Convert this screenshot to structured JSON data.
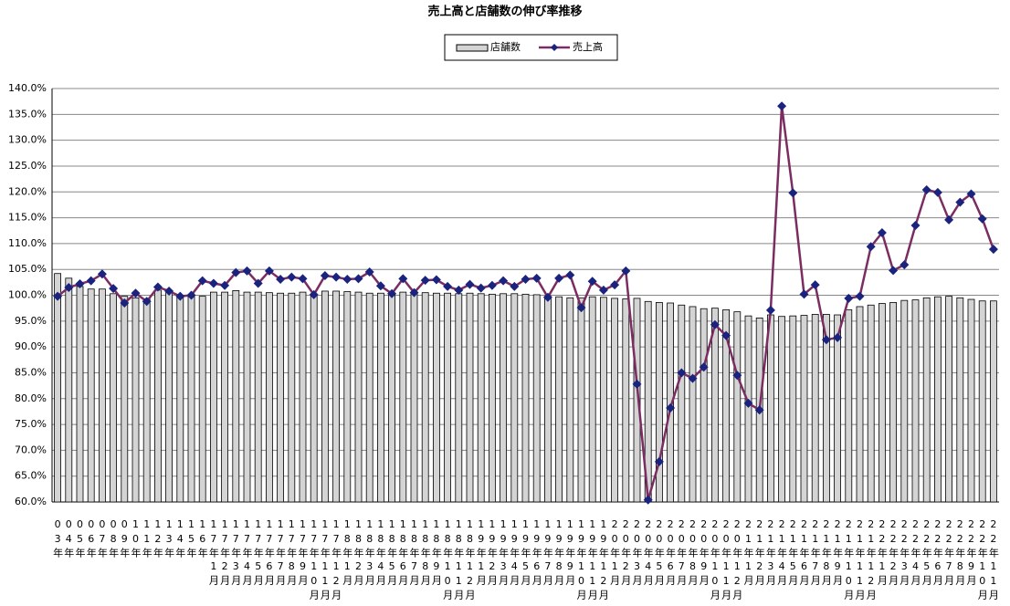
{
  "chart_data": {
    "type": "bar_line",
    "title": "売上高と店舗数の伸び率推移",
    "categories": [
      "03年",
      "04年",
      "05年",
      "06年",
      "07年",
      "08年",
      "09年",
      "10年",
      "11年",
      "12年",
      "13年",
      "14年",
      "15年",
      "16年",
      "17年1月",
      "17年2月",
      "17年3月",
      "17年4月",
      "17年5月",
      "17年6月",
      "17年7月",
      "17年8月",
      "17年9月",
      "17年10月",
      "17年11月",
      "17年12月",
      "18年1月",
      "18年2月",
      "18年3月",
      "18年4月",
      "18年5月",
      "18年6月",
      "18年7月",
      "18年8月",
      "18年9月",
      "18年10月",
      "18年11月",
      "18年12月",
      "19年1月",
      "19年2月",
      "19年3月",
      "19年4月",
      "19年5月",
      "19年6月",
      "19年7月",
      "19年8月",
      "19年9月",
      "19年10月",
      "19年11月",
      "19年12月",
      "20年1月",
      "20年2月",
      "20年3月",
      "20年4月",
      "20年5月",
      "20年6月",
      "20年7月",
      "20年8月",
      "20年9月",
      "20年10月",
      "20年11月",
      "20年12月",
      "21年1月",
      "21年2月",
      "21年3月",
      "21年4月",
      "21年5月",
      "21年6月",
      "21年7月",
      "21年8月",
      "21年9月",
      "21年10月",
      "21年11月",
      "21年12月",
      "22年1月",
      "22年2月",
      "22年3月",
      "22年4月",
      "22年5月",
      "22年6月",
      "22年7月",
      "22年8月",
      "22年9月",
      "22年10月",
      "22年11月"
    ],
    "series": [
      {
        "name": "店舗数",
        "type": "bar",
        "color": "#d4d4d4",
        "values": [
          104.2,
          103.3,
          101.7,
          101.2,
          101.2,
          100.3,
          99.8,
          99.5,
          99.3,
          101.0,
          100.8,
          99.9,
          99.7,
          99.8,
          100.6,
          100.6,
          100.9,
          100.6,
          100.6,
          100.5,
          100.4,
          100.4,
          100.6,
          100.2,
          100.8,
          100.8,
          100.7,
          100.6,
          100.4,
          100.4,
          100.4,
          100.6,
          100.6,
          100.5,
          100.4,
          100.4,
          100.3,
          100.4,
          100.3,
          100.2,
          100.3,
          100.3,
          100.2,
          100.1,
          99.8,
          99.7,
          99.5,
          99.5,
          99.7,
          99.6,
          99.4,
          99.3,
          99.4,
          98.8,
          98.6,
          98.5,
          98.1,
          97.8,
          97.4,
          97.5,
          97.2,
          96.8,
          96.0,
          95.6,
          96.2,
          95.9,
          96.0,
          96.1,
          96.3,
          96.3,
          96.2,
          97.2,
          97.8,
          98.1,
          98.4,
          98.6,
          99.0,
          99.1,
          99.5,
          99.7,
          99.8,
          99.5,
          99.2,
          98.9,
          98.9
        ]
      },
      {
        "name": "売上高",
        "type": "line",
        "color": "#7b2d62",
        "marker_color": "#1a237e",
        "values": [
          99.8,
          101.5,
          102.2,
          102.8,
          104.1,
          101.3,
          98.5,
          100.4,
          98.8,
          101.6,
          100.8,
          99.8,
          100.0,
          102.8,
          102.3,
          101.9,
          104.4,
          104.7,
          102.3,
          104.7,
          103.1,
          103.5,
          103.2,
          100.1,
          103.8,
          103.5,
          103.1,
          103.2,
          104.5,
          101.8,
          100.3,
          103.2,
          100.5,
          102.9,
          103.0,
          101.7,
          101.0,
          102.1,
          101.4,
          101.9,
          102.8,
          101.7,
          103.1,
          103.3,
          99.6,
          103.3,
          103.9,
          97.6,
          102.7,
          101.0,
          102.0,
          104.7,
          82.8,
          60.4,
          67.8,
          78.2,
          85.0,
          83.9,
          86.1,
          94.3,
          92.2,
          84.5,
          79.1,
          77.8,
          97.1,
          136.6,
          119.8,
          100.2,
          102.0,
          91.4,
          91.8,
          99.4,
          99.8,
          109.4,
          112.1,
          104.8,
          105.9,
          113.5,
          120.4,
          119.9,
          114.6,
          118.0,
          119.6,
          114.8,
          108.9
        ]
      }
    ],
    "ylim": [
      60,
      140
    ],
    "yticks": [
      {
        "value": 60,
        "label": "60.0%"
      },
      {
        "value": 65,
        "label": "65.0%"
      },
      {
        "value": 70,
        "label": "70.0%"
      },
      {
        "value": 75,
        "label": "75.0%"
      },
      {
        "value": 80,
        "label": "80.0%"
      },
      {
        "value": 85,
        "label": "85.0%"
      },
      {
        "value": 90,
        "label": "90.0%"
      },
      {
        "value": 95,
        "label": "95.0%"
      },
      {
        "value": 100,
        "label": "100.0%"
      },
      {
        "value": 105,
        "label": "105.0%"
      },
      {
        "value": 110,
        "label": "110.0%"
      },
      {
        "value": 115,
        "label": "115.0%"
      },
      {
        "value": 120,
        "label": "120.0%"
      },
      {
        "value": 125,
        "label": "125.0%"
      },
      {
        "value": 130,
        "label": "130.0%"
      },
      {
        "value": 135,
        "label": "135.0%"
      },
      {
        "value": 140,
        "label": "140.0%"
      }
    ],
    "grid": true,
    "legend": "top"
  }
}
